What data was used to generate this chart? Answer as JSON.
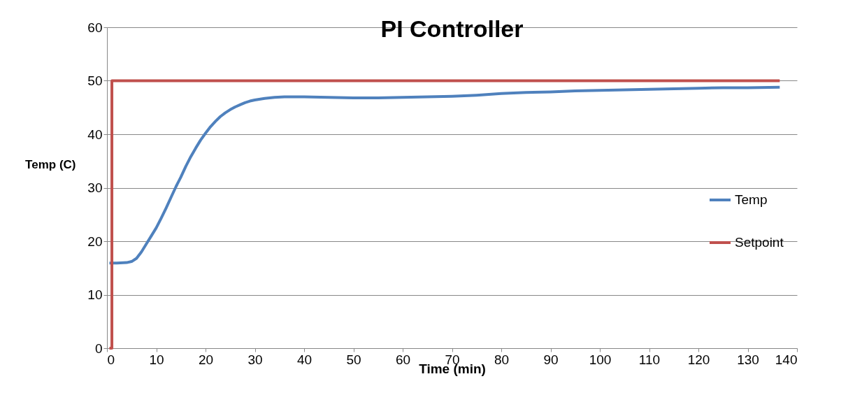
{
  "chart_data": {
    "type": "line",
    "title": "PI Controller",
    "xlabel": "Time (min)",
    "ylabel": "Temp (C)",
    "xlim": [
      0,
      140
    ],
    "xticks": [
      0,
      10,
      20,
      30,
      40,
      50,
      60,
      70,
      80,
      90,
      100,
      110,
      120,
      130,
      140
    ],
    "ylim": [
      0,
      60
    ],
    "yticks": [
      0,
      10,
      20,
      30,
      40,
      50,
      60
    ],
    "grid": "y",
    "legend": "right",
    "marker": "none",
    "line_style": "solid",
    "series": [
      {
        "name": "Temp",
        "color": "#4f81bd",
        "x": [
          0.5,
          2,
          4,
          5,
          6,
          7,
          8,
          9,
          10,
          11,
          12,
          13,
          14,
          15,
          16,
          17,
          18,
          19,
          20,
          21,
          22,
          23,
          24,
          25,
          26,
          27,
          28,
          29,
          30,
          32,
          34,
          36,
          38,
          40,
          45,
          50,
          55,
          60,
          65,
          70,
          75,
          80,
          85,
          90,
          95,
          100,
          105,
          110,
          115,
          120,
          125,
          130,
          136.5
        ],
        "values": [
          15.9,
          15.9,
          16,
          16.2,
          16.8,
          18,
          19.5,
          21,
          22.5,
          24.3,
          26.2,
          28.2,
          30.2,
          32,
          34,
          35.8,
          37.4,
          38.9,
          40.2,
          41.4,
          42.4,
          43.3,
          44,
          44.6,
          45.1,
          45.5,
          45.9,
          46.2,
          46.4,
          46.7,
          46.9,
          47,
          47,
          47,
          46.9,
          46.8,
          46.8,
          46.9,
          47,
          47.1,
          47.3,
          47.6,
          47.8,
          47.9,
          48.1,
          48.2,
          48.3,
          48.4,
          48.5,
          48.6,
          48.7,
          48.7,
          48.8
        ]
      },
      {
        "name": "Setpoint",
        "color": "#c0504d",
        "x": [
          0.5,
          1,
          1,
          136.5
        ],
        "values": [
          0,
          0,
          50,
          50
        ]
      }
    ]
  }
}
